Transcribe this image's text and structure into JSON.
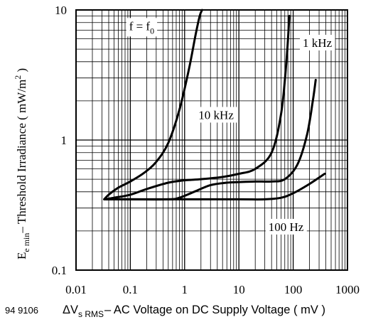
{
  "figure_number": "94 9106",
  "chart_data": {
    "type": "line",
    "x_scale": "log",
    "y_scale": "log",
    "xlim": [
      0.01,
      1000
    ],
    "ylim": [
      0.1,
      10
    ],
    "x_ticks": [
      {
        "value": 0.01,
        "label": "0.01"
      },
      {
        "value": 0.1,
        "label": "0.1"
      },
      {
        "value": 1,
        "label": "1"
      },
      {
        "value": 10,
        "label": "10"
      },
      {
        "value": 100,
        "label": "100"
      },
      {
        "value": 1000,
        "label": "1000"
      }
    ],
    "y_ticks": [
      {
        "value": 10,
        "label": "10"
      },
      {
        "value": 1,
        "label": "1"
      },
      {
        "value": 0.1,
        "label": "0.1"
      }
    ],
    "grid": true,
    "xlabel": {
      "delta": "ΔV",
      "sub": "s RMS",
      "rest": "– AC Voltage on DC Supply Voltage ( mV )"
    },
    "ylabel": {
      "main": "E",
      "sub": "e min",
      "rest": "– Threshold Irradiance ( mW/m",
      "sup": "2",
      "close": " )"
    },
    "series": [
      {
        "name": "f = f0",
        "label_main": "f = f",
        "label_sub": "0",
        "label_at": [
          0.095,
          7.0
        ],
        "x": [
          0.033,
          0.04,
          0.06,
          0.1,
          0.18,
          0.3,
          0.5,
          0.8,
          1.2,
          1.6,
          1.9,
          2.1
        ],
        "y": [
          0.35,
          0.38,
          0.43,
          0.48,
          0.56,
          0.68,
          0.95,
          1.7,
          3.5,
          6.5,
          9.0,
          10.0
        ]
      },
      {
        "name": "10 kHz",
        "label_at": [
          1.8,
          1.45
        ],
        "x": [
          0.033,
          0.05,
          0.1,
          0.2,
          0.5,
          1,
          2,
          5,
          10,
          20,
          40,
          60,
          75,
          85
        ],
        "y": [
          0.35,
          0.36,
          0.38,
          0.42,
          0.47,
          0.49,
          0.5,
          0.52,
          0.55,
          0.6,
          0.8,
          1.6,
          4.0,
          9.0
        ]
      },
      {
        "name": "1 kHz",
        "label_at": [
          150,
          5.2
        ],
        "x": [
          0.035,
          0.1,
          0.5,
          0.8,
          1.5,
          3,
          6,
          10,
          20,
          40,
          70,
          120,
          180,
          230,
          260
        ],
        "y": [
          0.35,
          0.35,
          0.35,
          0.36,
          0.4,
          0.45,
          0.47,
          0.475,
          0.48,
          0.48,
          0.5,
          0.65,
          1.1,
          2.0,
          2.9
        ]
      },
      {
        "name": "100 Hz",
        "label_at": [
          35,
          0.2
        ],
        "x": [
          0.035,
          1,
          10,
          30,
          60,
          100,
          200,
          380
        ],
        "y": [
          0.35,
          0.35,
          0.35,
          0.35,
          0.36,
          0.39,
          0.46,
          0.55
        ]
      }
    ]
  }
}
